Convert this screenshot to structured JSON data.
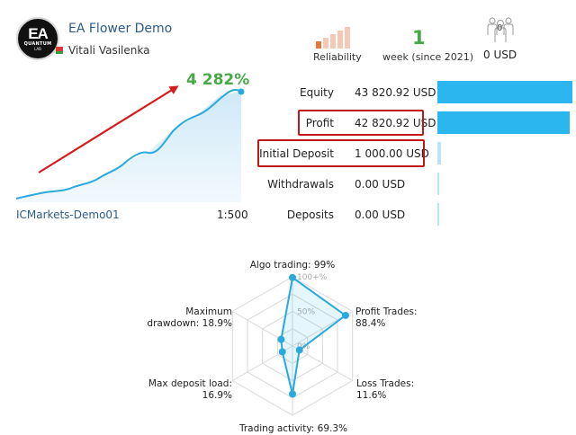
{
  "header": {
    "logo": {
      "main": "EA",
      "line1": "QUANTUM",
      "line2": "LAB"
    },
    "title": "EA Flower Demo",
    "author": "Vitali Vasilenka"
  },
  "reliability": {
    "label": "Reliability",
    "bars_filled": 1,
    "bars_total": 5
  },
  "weeks": {
    "value": "1",
    "label": "week (since 2021)"
  },
  "subscribers": {
    "count": "0",
    "cost": "0 USD"
  },
  "growth_chart": {
    "growth_label": "4 282%",
    "server": "ICMarkets-Demo01",
    "leverage": "1:500"
  },
  "stats": [
    {
      "label": "Equity",
      "value": "43 820.92 USD",
      "fraction": 1.0,
      "highlight": false
    },
    {
      "label": "Profit",
      "value": "42 820.92 USD",
      "fraction": 0.977,
      "highlight": true
    },
    {
      "label": "Initial Deposit",
      "value": "1 000.00 USD",
      "fraction": 0.023,
      "highlight": true
    },
    {
      "label": "Withdrawals",
      "value": "0.00 USD",
      "fraction": 0.0,
      "highlight": false
    },
    {
      "label": "Deposits",
      "value": "0.00 USD",
      "fraction": 0.0,
      "highlight": false
    }
  ],
  "radar": {
    "grid_labels": [
      "100+%",
      "50%",
      "0%"
    ],
    "axes": [
      {
        "label": "Algo trading: 99%",
        "value": 0.99
      },
      {
        "label": "Profit Trades: 88.4%",
        "value": 0.884
      },
      {
        "label": "Loss Trades: 11.6%",
        "value": 0.116
      },
      {
        "label": "Trading activity: 69.3%",
        "value": 0.693
      },
      {
        "label": "Max deposit load: 16.9%",
        "value": 0.169
      },
      {
        "label": "Maximum drawdown: 18.9%",
        "value": 0.189
      }
    ]
  },
  "colors": {
    "accent_blue": "#2bb6ef",
    "growth_green": "#48a848",
    "highlight_red": "#c11717",
    "reliability_on": "#e8733b",
    "reliability_off": "#f6c9b6"
  }
}
